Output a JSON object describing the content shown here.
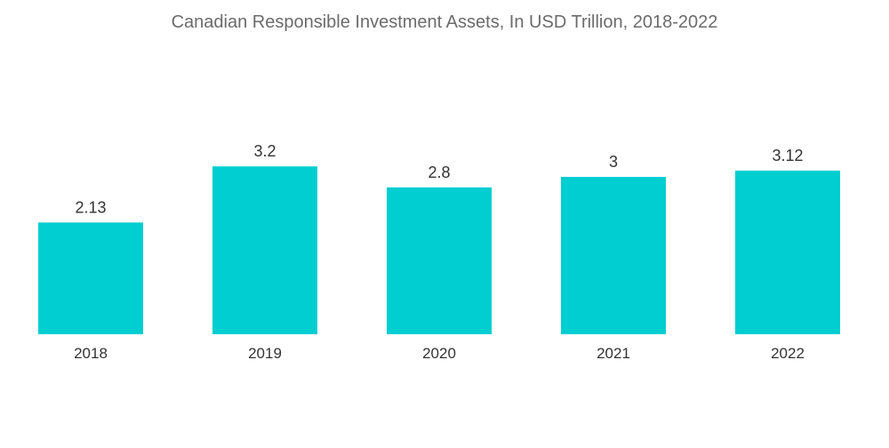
{
  "chart_data": {
    "type": "bar",
    "title": "Canadian Responsible Investment Assets, In USD Trillion, 2018-2022",
    "categories": [
      "2018",
      "2019",
      "2020",
      "2021",
      "2022"
    ],
    "values": [
      2.13,
      3.2,
      2.8,
      3,
      3.12
    ],
    "value_labels": [
      "2.13",
      "3.2",
      "2.8",
      "3",
      "3.12"
    ],
    "xlabel": "",
    "ylabel": "",
    "grid": false,
    "legend": "none",
    "bar_color": "#00CED1"
  }
}
